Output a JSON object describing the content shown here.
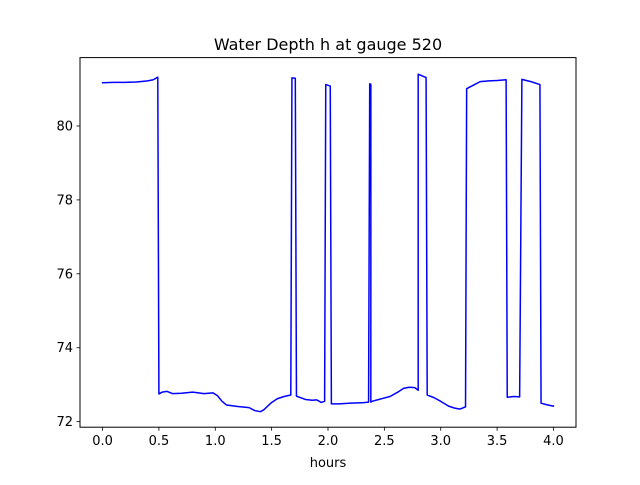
{
  "chart_data": {
    "type": "line",
    "title": "Water Depth h at gauge 520",
    "xlabel": "hours",
    "ylabel": "",
    "xlim": [
      -0.2,
      4.2
    ],
    "ylim": [
      71.85,
      81.85
    ],
    "xticks": [
      0.0,
      0.5,
      1.0,
      1.5,
      2.0,
      2.5,
      3.0,
      3.5,
      4.0
    ],
    "xtick_labels": [
      "0.0",
      "0.5",
      "1.0",
      "1.5",
      "2.0",
      "2.5",
      "3.0",
      "3.5",
      "4.0"
    ],
    "yticks": [
      72,
      74,
      76,
      78,
      80
    ],
    "ytick_labels": [
      "72",
      "74",
      "76",
      "78",
      "80"
    ],
    "grid": false,
    "legend": "none",
    "series": [
      {
        "color": "#0000ff",
        "points": [
          [
            0.0,
            81.17
          ],
          [
            0.1,
            81.18
          ],
          [
            0.2,
            81.18
          ],
          [
            0.3,
            81.19
          ],
          [
            0.4,
            81.22
          ],
          [
            0.45,
            81.25
          ],
          [
            0.49,
            81.32
          ],
          [
            0.5,
            72.75
          ],
          [
            0.53,
            72.8
          ],
          [
            0.57,
            72.82
          ],
          [
            0.62,
            72.76
          ],
          [
            0.7,
            72.77
          ],
          [
            0.8,
            72.8
          ],
          [
            0.9,
            72.76
          ],
          [
            0.98,
            72.78
          ],
          [
            1.02,
            72.7
          ],
          [
            1.06,
            72.55
          ],
          [
            1.1,
            72.45
          ],
          [
            1.2,
            72.41
          ],
          [
            1.3,
            72.38
          ],
          [
            1.35,
            72.3
          ],
          [
            1.4,
            72.27
          ],
          [
            1.43,
            72.32
          ],
          [
            1.5,
            72.52
          ],
          [
            1.55,
            72.62
          ],
          [
            1.61,
            72.68
          ],
          [
            1.67,
            72.72
          ],
          [
            1.68,
            81.3
          ],
          [
            1.71,
            81.29
          ],
          [
            1.72,
            72.69
          ],
          [
            1.8,
            72.6
          ],
          [
            1.86,
            72.58
          ],
          [
            1.9,
            72.59
          ],
          [
            1.94,
            72.52
          ],
          [
            1.97,
            72.55
          ],
          [
            1.98,
            81.12
          ],
          [
            2.02,
            81.08
          ],
          [
            2.03,
            72.48
          ],
          [
            2.1,
            72.48
          ],
          [
            2.2,
            72.5
          ],
          [
            2.3,
            72.51
          ],
          [
            2.36,
            72.53
          ],
          [
            2.37,
            81.14
          ],
          [
            2.38,
            81.13
          ],
          [
            2.38,
            72.53
          ],
          [
            2.39,
            72.55
          ],
          [
            2.45,
            72.6
          ],
          [
            2.55,
            72.68
          ],
          [
            2.62,
            72.8
          ],
          [
            2.67,
            72.9
          ],
          [
            2.72,
            72.93
          ],
          [
            2.77,
            72.92
          ],
          [
            2.8,
            72.85
          ],
          [
            2.8,
            81.4
          ],
          [
            2.87,
            81.31
          ],
          [
            2.88,
            72.72
          ],
          [
            2.94,
            72.65
          ],
          [
            3.0,
            72.55
          ],
          [
            3.07,
            72.42
          ],
          [
            3.12,
            72.37
          ],
          [
            3.17,
            72.34
          ],
          [
            3.22,
            72.4
          ],
          [
            3.23,
            81.01
          ],
          [
            3.3,
            81.12
          ],
          [
            3.35,
            81.2
          ],
          [
            3.43,
            81.22
          ],
          [
            3.5,
            81.23
          ],
          [
            3.58,
            81.25
          ],
          [
            3.59,
            72.66
          ],
          [
            3.65,
            72.68
          ],
          [
            3.7,
            72.67
          ],
          [
            3.72,
            81.26
          ],
          [
            3.8,
            81.2
          ],
          [
            3.88,
            81.12
          ],
          [
            3.89,
            72.5
          ],
          [
            3.95,
            72.45
          ],
          [
            4.0,
            72.42
          ]
        ]
      }
    ]
  }
}
